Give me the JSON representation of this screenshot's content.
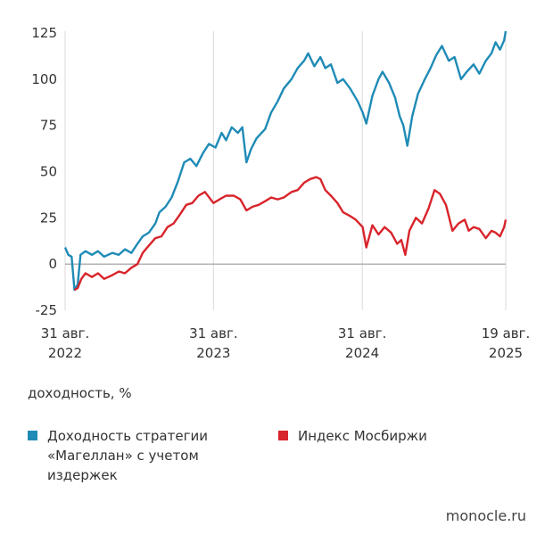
{
  "chart_data": {
    "type": "line",
    "ylabel": "доходность, %",
    "ylim": [
      -25,
      125
    ],
    "yticks": [
      125,
      100,
      75,
      50,
      25,
      0,
      -25
    ],
    "xlim": [
      "2022-08-31",
      "2025-08-19"
    ],
    "xticks": [
      {
        "date": "2022-08-31",
        "line1": "31 авг.",
        "line2": "2022"
      },
      {
        "date": "2023-08-31",
        "line1": "31 авг.",
        "line2": "2023"
      },
      {
        "date": "2024-08-31",
        "line1": "31 авг.",
        "line2": "2024"
      },
      {
        "date": "2025-08-19",
        "line1": "19 авг.",
        "line2": "2025"
      }
    ],
    "grid": "vertical",
    "legend_position": "bottom",
    "series": [
      {
        "name": "Доходность стратегии «Магеллан» с учетом издержек",
        "color": "#1f8bb6",
        "points": [
          [
            "2022-08-31",
            9
          ],
          [
            "2022-09-08",
            5
          ],
          [
            "2022-09-16",
            4
          ],
          [
            "2022-09-23",
            -14
          ],
          [
            "2022-10-01",
            -11
          ],
          [
            "2022-10-08",
            5
          ],
          [
            "2022-10-20",
            7
          ],
          [
            "2022-11-05",
            5
          ],
          [
            "2022-11-20",
            7
          ],
          [
            "2022-12-05",
            4
          ],
          [
            "2022-12-25",
            6
          ],
          [
            "2023-01-10",
            5
          ],
          [
            "2023-01-25",
            8
          ],
          [
            "2023-02-10",
            6
          ],
          [
            "2023-02-25",
            11
          ],
          [
            "2023-03-10",
            15
          ],
          [
            "2023-03-25",
            17
          ],
          [
            "2023-04-10",
            22
          ],
          [
            "2023-04-20",
            28
          ],
          [
            "2023-05-05",
            31
          ],
          [
            "2023-05-20",
            36
          ],
          [
            "2023-06-05",
            45
          ],
          [
            "2023-06-20",
            55
          ],
          [
            "2023-07-05",
            57
          ],
          [
            "2023-07-20",
            53
          ],
          [
            "2023-08-05",
            60
          ],
          [
            "2023-08-20",
            65
          ],
          [
            "2023-09-05",
            63
          ],
          [
            "2023-09-20",
            71
          ],
          [
            "2023-10-01",
            67
          ],
          [
            "2023-10-15",
            74
          ],
          [
            "2023-10-30",
            71
          ],
          [
            "2023-11-10",
            74
          ],
          [
            "2023-11-20",
            55
          ],
          [
            "2023-12-01",
            62
          ],
          [
            "2023-12-15",
            68
          ],
          [
            "2024-01-05",
            73
          ],
          [
            "2024-01-20",
            82
          ],
          [
            "2024-02-05",
            88
          ],
          [
            "2024-02-20",
            95
          ],
          [
            "2024-03-10",
            100
          ],
          [
            "2024-03-25",
            106
          ],
          [
            "2024-04-10",
            110
          ],
          [
            "2024-04-20",
            114
          ],
          [
            "2024-05-05",
            107
          ],
          [
            "2024-05-20",
            112
          ],
          [
            "2024-06-01",
            106
          ],
          [
            "2024-06-15",
            108
          ],
          [
            "2024-07-01",
            98
          ],
          [
            "2024-07-15",
            100
          ],
          [
            "2024-08-01",
            95
          ],
          [
            "2024-08-20",
            88
          ],
          [
            "2024-09-01",
            82
          ],
          [
            "2024-09-10",
            76
          ],
          [
            "2024-09-25",
            91
          ],
          [
            "2024-10-10",
            100
          ],
          [
            "2024-10-20",
            104
          ],
          [
            "2024-11-05",
            98
          ],
          [
            "2024-11-20",
            90
          ],
          [
            "2024-12-01",
            80
          ],
          [
            "2024-12-10",
            75
          ],
          [
            "2024-12-20",
            64
          ],
          [
            "2025-01-01",
            80
          ],
          [
            "2025-01-15",
            92
          ],
          [
            "2025-02-01",
            100
          ],
          [
            "2025-02-15",
            106
          ],
          [
            "2025-03-01",
            113
          ],
          [
            "2025-03-15",
            118
          ],
          [
            "2025-04-01",
            110
          ],
          [
            "2025-04-15",
            112
          ],
          [
            "2025-05-01",
            100
          ],
          [
            "2025-05-15",
            104
          ],
          [
            "2025-06-01",
            108
          ],
          [
            "2025-06-15",
            103
          ],
          [
            "2025-07-01",
            110
          ],
          [
            "2025-07-15",
            114
          ],
          [
            "2025-07-25",
            120
          ],
          [
            "2025-08-05",
            116
          ],
          [
            "2025-08-15",
            121
          ],
          [
            "2025-08-19",
            126
          ]
        ]
      },
      {
        "name": "Индекс Мосбиржи",
        "color": "#d8242b",
        "points": [
          [
            "2022-09-23",
            -14
          ],
          [
            "2022-10-01",
            -13
          ],
          [
            "2022-10-10",
            -8
          ],
          [
            "2022-10-20",
            -5
          ],
          [
            "2022-11-05",
            -7
          ],
          [
            "2022-11-20",
            -5
          ],
          [
            "2022-12-05",
            -8
          ],
          [
            "2022-12-25",
            -6
          ],
          [
            "2023-01-10",
            -4
          ],
          [
            "2023-01-25",
            -5
          ],
          [
            "2023-02-10",
            -2
          ],
          [
            "2023-02-25",
            0
          ],
          [
            "2023-03-10",
            6
          ],
          [
            "2023-03-25",
            10
          ],
          [
            "2023-04-10",
            14
          ],
          [
            "2023-04-25",
            15
          ],
          [
            "2023-05-10",
            20
          ],
          [
            "2023-05-25",
            22
          ],
          [
            "2023-06-10",
            27
          ],
          [
            "2023-06-25",
            32
          ],
          [
            "2023-07-10",
            33
          ],
          [
            "2023-07-25",
            37
          ],
          [
            "2023-08-10",
            39
          ],
          [
            "2023-08-31",
            33
          ],
          [
            "2023-09-15",
            35
          ],
          [
            "2023-10-01",
            37
          ],
          [
            "2023-10-20",
            37
          ],
          [
            "2023-11-05",
            35
          ],
          [
            "2023-11-20",
            29
          ],
          [
            "2023-12-05",
            31
          ],
          [
            "2023-12-20",
            32
          ],
          [
            "2024-01-05",
            34
          ],
          [
            "2024-01-20",
            36
          ],
          [
            "2024-02-05",
            35
          ],
          [
            "2024-02-20",
            36
          ],
          [
            "2024-03-10",
            39
          ],
          [
            "2024-03-25",
            40
          ],
          [
            "2024-04-10",
            44
          ],
          [
            "2024-04-25",
            46
          ],
          [
            "2024-05-10",
            47
          ],
          [
            "2024-05-20",
            46
          ],
          [
            "2024-06-01",
            40
          ],
          [
            "2024-06-15",
            37
          ],
          [
            "2024-07-01",
            33
          ],
          [
            "2024-07-15",
            28
          ],
          [
            "2024-08-01",
            26
          ],
          [
            "2024-08-15",
            24
          ],
          [
            "2024-09-01",
            20
          ],
          [
            "2024-09-10",
            9
          ],
          [
            "2024-09-25",
            21
          ],
          [
            "2024-10-10",
            16
          ],
          [
            "2024-10-25",
            20
          ],
          [
            "2024-11-10",
            17
          ],
          [
            "2024-11-25",
            11
          ],
          [
            "2024-12-05",
            13
          ],
          [
            "2024-12-15",
            5
          ],
          [
            "2024-12-25",
            18
          ],
          [
            "2025-01-10",
            25
          ],
          [
            "2025-01-25",
            22
          ],
          [
            "2025-02-10",
            30
          ],
          [
            "2025-02-25",
            40
          ],
          [
            "2025-03-10",
            38
          ],
          [
            "2025-03-25",
            32
          ],
          [
            "2025-04-10",
            18
          ],
          [
            "2025-04-25",
            22
          ],
          [
            "2025-05-10",
            24
          ],
          [
            "2025-05-20",
            18
          ],
          [
            "2025-06-01",
            20
          ],
          [
            "2025-06-15",
            19
          ],
          [
            "2025-07-01",
            14
          ],
          [
            "2025-07-15",
            18
          ],
          [
            "2025-07-25",
            17
          ],
          [
            "2025-08-05",
            15
          ],
          [
            "2025-08-15",
            20
          ],
          [
            "2025-08-19",
            24
          ]
        ]
      }
    ]
  },
  "legend": [
    {
      "label": "Доходность стратегии «Магеллан» с учетом издержек",
      "color": "#1f8bb6"
    },
    {
      "label": "Индекс Мосбиржи",
      "color": "#d8242b"
    }
  ],
  "source": "monocle.ru"
}
